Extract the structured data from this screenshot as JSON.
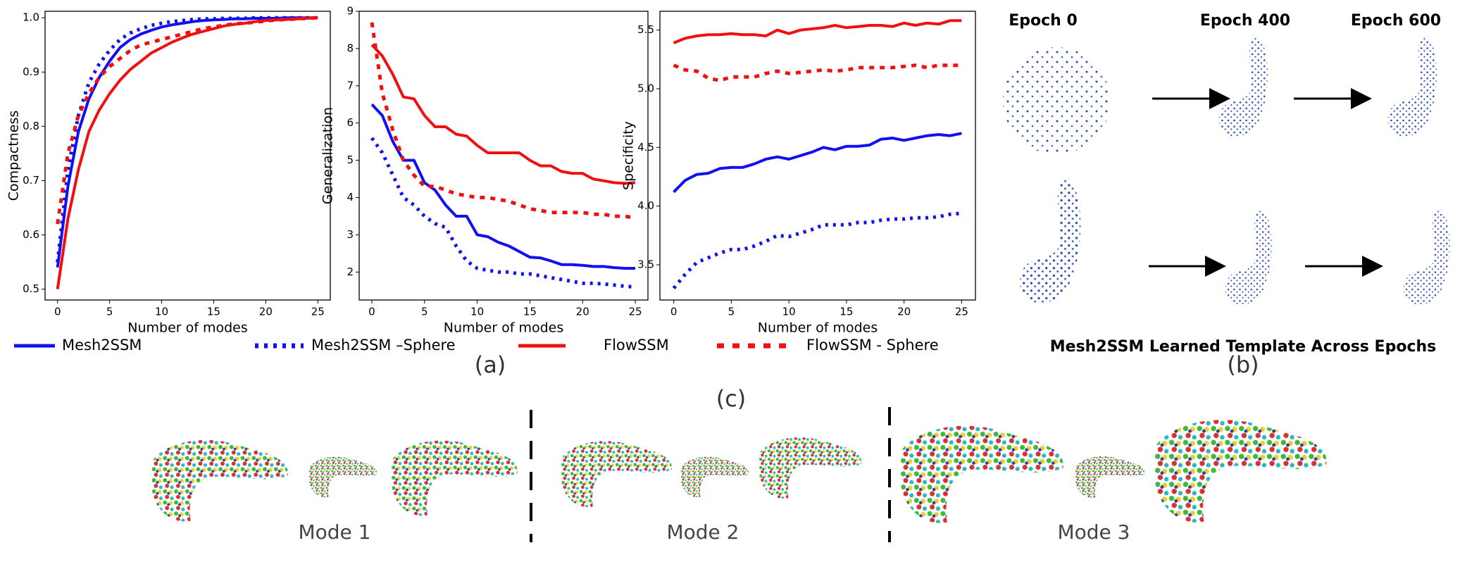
{
  "chart_data": [
    {
      "type": "line",
      "ylabel": "Compactness",
      "xlabel": "Number of modes",
      "x": [
        0,
        1,
        2,
        3,
        4,
        5,
        6,
        7,
        8,
        9,
        10,
        11,
        12,
        13,
        14,
        15,
        16,
        17,
        18,
        19,
        20,
        21,
        22,
        23,
        24,
        25
      ],
      "xlim": [
        -1.2,
        26.2
      ],
      "xticks": [
        0,
        5,
        10,
        15,
        20,
        25
      ],
      "ylim": [
        0.48,
        1.012
      ],
      "yticks": [
        0.5,
        0.6,
        0.7,
        0.8,
        0.9,
        {
          "value": 1,
          "label": "1.0"
        }
      ],
      "series": [
        {
          "name": "Mesh2SSM",
          "color": "#1010f0",
          "linestyle": "solid",
          "values": [
            0.54,
            0.69,
            0.79,
            0.85,
            0.89,
            0.92,
            0.945,
            0.96,
            0.97,
            0.977,
            0.983,
            0.987,
            0.99,
            0.993,
            0.995,
            0.996,
            0.997,
            0.998,
            0.998,
            0.999,
            0.999,
            0.999,
            1,
            1,
            1,
            1
          ]
        },
        {
          "name": "Mesh2SSM –Sphere",
          "color": "#1010f0",
          "linestyle": "dotted",
          "values": [
            0.55,
            0.72,
            0.82,
            0.88,
            0.915,
            0.94,
            0.96,
            0.972,
            0.98,
            0.986,
            0.99,
            0.993,
            0.995,
            0.997,
            0.998,
            0.998,
            0.999,
            0.999,
            0.999,
            1,
            1,
            1,
            1,
            1,
            1,
            1
          ]
        },
        {
          "name": "FlowSSM",
          "color": "#f01010",
          "linestyle": "solid",
          "values": [
            0.5,
            0.63,
            0.72,
            0.79,
            0.83,
            0.86,
            0.885,
            0.905,
            0.92,
            0.935,
            0.945,
            0.955,
            0.963,
            0.97,
            0.975,
            0.98,
            0.985,
            0.988,
            0.99,
            0.993,
            0.995,
            0.996,
            0.997,
            0.998,
            0.999,
            1
          ]
        },
        {
          "name": "FlowSSM - Sphere",
          "color": "#f01010",
          "linestyle": "dotted",
          "values": [
            0.62,
            0.75,
            0.82,
            0.86,
            0.89,
            0.91,
            0.925,
            0.94,
            0.95,
            0.955,
            0.96,
            0.965,
            0.97,
            0.975,
            0.98,
            0.983,
            0.986,
            0.989,
            0.99,
            0.992,
            0.994,
            0.996,
            0.997,
            0.998,
            0.999,
            1
          ]
        }
      ]
    },
    {
      "type": "line",
      "ylabel": "Generalization",
      "xlabel": "Number of modes",
      "x": [
        0,
        1,
        2,
        3,
        4,
        5,
        6,
        7,
        8,
        9,
        10,
        11,
        12,
        13,
        14,
        15,
        16,
        17,
        18,
        19,
        20,
        21,
        22,
        23,
        24,
        25
      ],
      "xlim": [
        -1.2,
        26.2
      ],
      "xticks": [
        0,
        5,
        10,
        15,
        20,
        25
      ],
      "ylim": [
        1.25,
        9.0
      ],
      "yticks": [
        2,
        3,
        4,
        5,
        6,
        7,
        8,
        9
      ],
      "series": [
        {
          "name": "Mesh2SSM",
          "color": "#1010f0",
          "linestyle": "solid",
          "values": [
            6.5,
            6.2,
            5.5,
            5.0,
            5.0,
            4.4,
            4.2,
            3.8,
            3.5,
            3.5,
            3.0,
            2.95,
            2.8,
            2.7,
            2.55,
            2.4,
            2.38,
            2.3,
            2.2,
            2.2,
            2.18,
            2.15,
            2.15,
            2.12,
            2.1,
            2.1
          ]
        },
        {
          "name": "Mesh2SSM –Sphere",
          "color": "#1010f0",
          "linestyle": "dotted",
          "values": [
            5.6,
            5.2,
            4.6,
            4.0,
            3.8,
            3.5,
            3.3,
            3.2,
            2.7,
            2.3,
            2.1,
            2.05,
            2.0,
            2.0,
            1.95,
            1.95,
            1.9,
            1.85,
            1.8,
            1.75,
            1.7,
            1.7,
            1.68,
            1.65,
            1.62,
            1.6
          ]
        },
        {
          "name": "FlowSSM",
          "color": "#f01010",
          "linestyle": "solid",
          "values": [
            8.1,
            7.8,
            7.3,
            6.7,
            6.65,
            6.2,
            5.9,
            5.9,
            5.7,
            5.65,
            5.4,
            5.2,
            5.2,
            5.2,
            5.2,
            5.0,
            4.85,
            4.85,
            4.7,
            4.65,
            4.65,
            4.5,
            4.45,
            4.4,
            4.38,
            4.4
          ]
        },
        {
          "name": "FlowSSM - Sphere",
          "color": "#f01010",
          "linestyle": "dotted",
          "values": [
            8.7,
            6.8,
            5.8,
            5.0,
            4.6,
            4.3,
            4.3,
            4.2,
            4.1,
            4.05,
            4.0,
            4.0,
            3.95,
            3.9,
            3.8,
            3.7,
            3.65,
            3.6,
            3.6,
            3.6,
            3.6,
            3.55,
            3.55,
            3.5,
            3.5,
            3.45
          ]
        }
      ]
    },
    {
      "type": "line",
      "ylabel": "Specificity",
      "xlabel": "Number of modes",
      "x": [
        0,
        1,
        2,
        3,
        4,
        5,
        6,
        7,
        8,
        9,
        10,
        11,
        12,
        13,
        14,
        15,
        16,
        17,
        18,
        19,
        20,
        21,
        22,
        23,
        24,
        25
      ],
      "xlim": [
        -1.2,
        26.2
      ],
      "xticks": [
        0,
        5,
        10,
        15,
        20,
        25
      ],
      "ylim": [
        3.2,
        5.66
      ],
      "yticks": [
        3.5,
        {
          "value": 4,
          "label": "4.0"
        },
        4.5,
        {
          "value": 5,
          "label": "5.0"
        },
        5.5
      ],
      "series": [
        {
          "name": "Mesh2SSM",
          "color": "#1010f0",
          "linestyle": "solid",
          "values": [
            4.12,
            4.22,
            4.27,
            4.28,
            4.32,
            4.33,
            4.33,
            4.36,
            4.4,
            4.42,
            4.4,
            4.43,
            4.46,
            4.5,
            4.48,
            4.51,
            4.51,
            4.52,
            4.57,
            4.58,
            4.56,
            4.58,
            4.6,
            4.61,
            4.6,
            4.62
          ]
        },
        {
          "name": "Mesh2SSM –Sphere",
          "color": "#1010f0",
          "linestyle": "dotted",
          "values": [
            3.3,
            3.42,
            3.52,
            3.56,
            3.6,
            3.63,
            3.63,
            3.66,
            3.7,
            3.75,
            3.74,
            3.77,
            3.8,
            3.84,
            3.84,
            3.84,
            3.86,
            3.86,
            3.88,
            3.89,
            3.89,
            3.9,
            3.9,
            3.91,
            3.93,
            3.94
          ]
        },
        {
          "name": "FlowSSM",
          "color": "#f01010",
          "linestyle": "solid",
          "values": [
            5.39,
            5.43,
            5.45,
            5.46,
            5.46,
            5.47,
            5.46,
            5.46,
            5.45,
            5.5,
            5.47,
            5.5,
            5.51,
            5.52,
            5.54,
            5.52,
            5.53,
            5.54,
            5.54,
            5.53,
            5.56,
            5.54,
            5.56,
            5.55,
            5.58,
            5.58
          ]
        },
        {
          "name": "FlowSSM - Sphere",
          "color": "#f01010",
          "linestyle": "dotted",
          "values": [
            5.2,
            5.16,
            5.15,
            5.09,
            5.07,
            5.1,
            5.1,
            5.1,
            5.13,
            5.15,
            5.13,
            5.14,
            5.15,
            5.16,
            5.15,
            5.16,
            5.18,
            5.18,
            5.18,
            5.18,
            5.19,
            5.2,
            5.18,
            5.2,
            5.2,
            5.2
          ]
        }
      ]
    }
  ],
  "figure": {
    "panel_a": "(a)",
    "panel_b": "(b)",
    "panel_c": "(c)",
    "epochs": [
      "Epoch 0",
      "Epoch 400",
      "Epoch 600"
    ],
    "caption_b": "Mesh2SSM Learned Template Across Epochs",
    "modes": [
      "Mode 1",
      "Mode 2",
      "Mode 3"
    ]
  }
}
